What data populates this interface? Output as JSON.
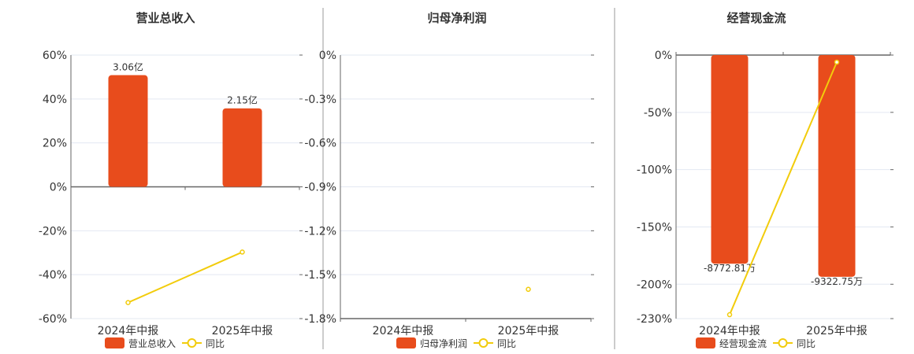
{
  "colors": {
    "bar": "#E84C1C",
    "line": "#F2CC0C",
    "grid": "#E3E8F2",
    "axis": "#666666",
    "divider": "#999999"
  },
  "chart_data": [
    {
      "type": "bar+line",
      "title": "营业总收入",
      "categories": [
        "2024年中报",
        "2025年中报"
      ],
      "bar_series": {
        "name": "营业总收入",
        "values": [
          3.06,
          2.15
        ],
        "unit": "亿",
        "labels": [
          "3.06亿",
          "2.15亿"
        ],
        "ylim": [
          -3.61,
          3.61
        ]
      },
      "line_series": {
        "name": "同比",
        "values": [
          -52.7,
          -29.7
        ],
        "unit": "%"
      },
      "y_ticks": [
        "60%",
        "40%",
        "20%",
        "0%",
        "-20%",
        "-40%",
        "-60%"
      ],
      "ylim": [
        -60,
        60
      ],
      "grid": true,
      "legend": "bottom"
    },
    {
      "type": "bar+line",
      "title": "归母净利润",
      "categories": [
        "2024年中报",
        "2025年中报"
      ],
      "bar_series": {
        "name": "归母净利润",
        "values": [
          null,
          null
        ],
        "labels": [
          "",
          ""
        ],
        "ylim": [
          -1,
          0
        ]
      },
      "line_series": {
        "name": "同比",
        "values": [
          null,
          -1.6
        ],
        "unit": "%"
      },
      "y_ticks": [
        "0%",
        "-0.3%",
        "-0.6%",
        "-0.9%",
        "-1.2%",
        "-1.5%",
        "-1.8%"
      ],
      "ylim": [
        -1.8,
        0
      ],
      "grid": true,
      "legend": "bottom"
    },
    {
      "type": "bar+line",
      "title": "经营现金流",
      "categories": [
        "2024年中报",
        "2025年中报"
      ],
      "bar_series": {
        "name": "经营现金流",
        "values": [
          -8772.81,
          -9322.75
        ],
        "unit": "万",
        "labels": [
          "-8772.81万",
          "-9322.75万"
        ],
        "ylim": [
          -11082,
          0
        ]
      },
      "line_series": {
        "name": "同比",
        "values": [
          -226.6,
          -6.2
        ],
        "unit": "%"
      },
      "y_ticks": [
        "0%",
        "-50%",
        "-100%",
        "-150%",
        "-200%",
        "-230%"
      ],
      "y_tick_values": [
        0,
        -50,
        -100,
        -150,
        -200,
        -230
      ],
      "ylim": [
        -230,
        0
      ],
      "grid": true,
      "legend": "bottom"
    }
  ]
}
